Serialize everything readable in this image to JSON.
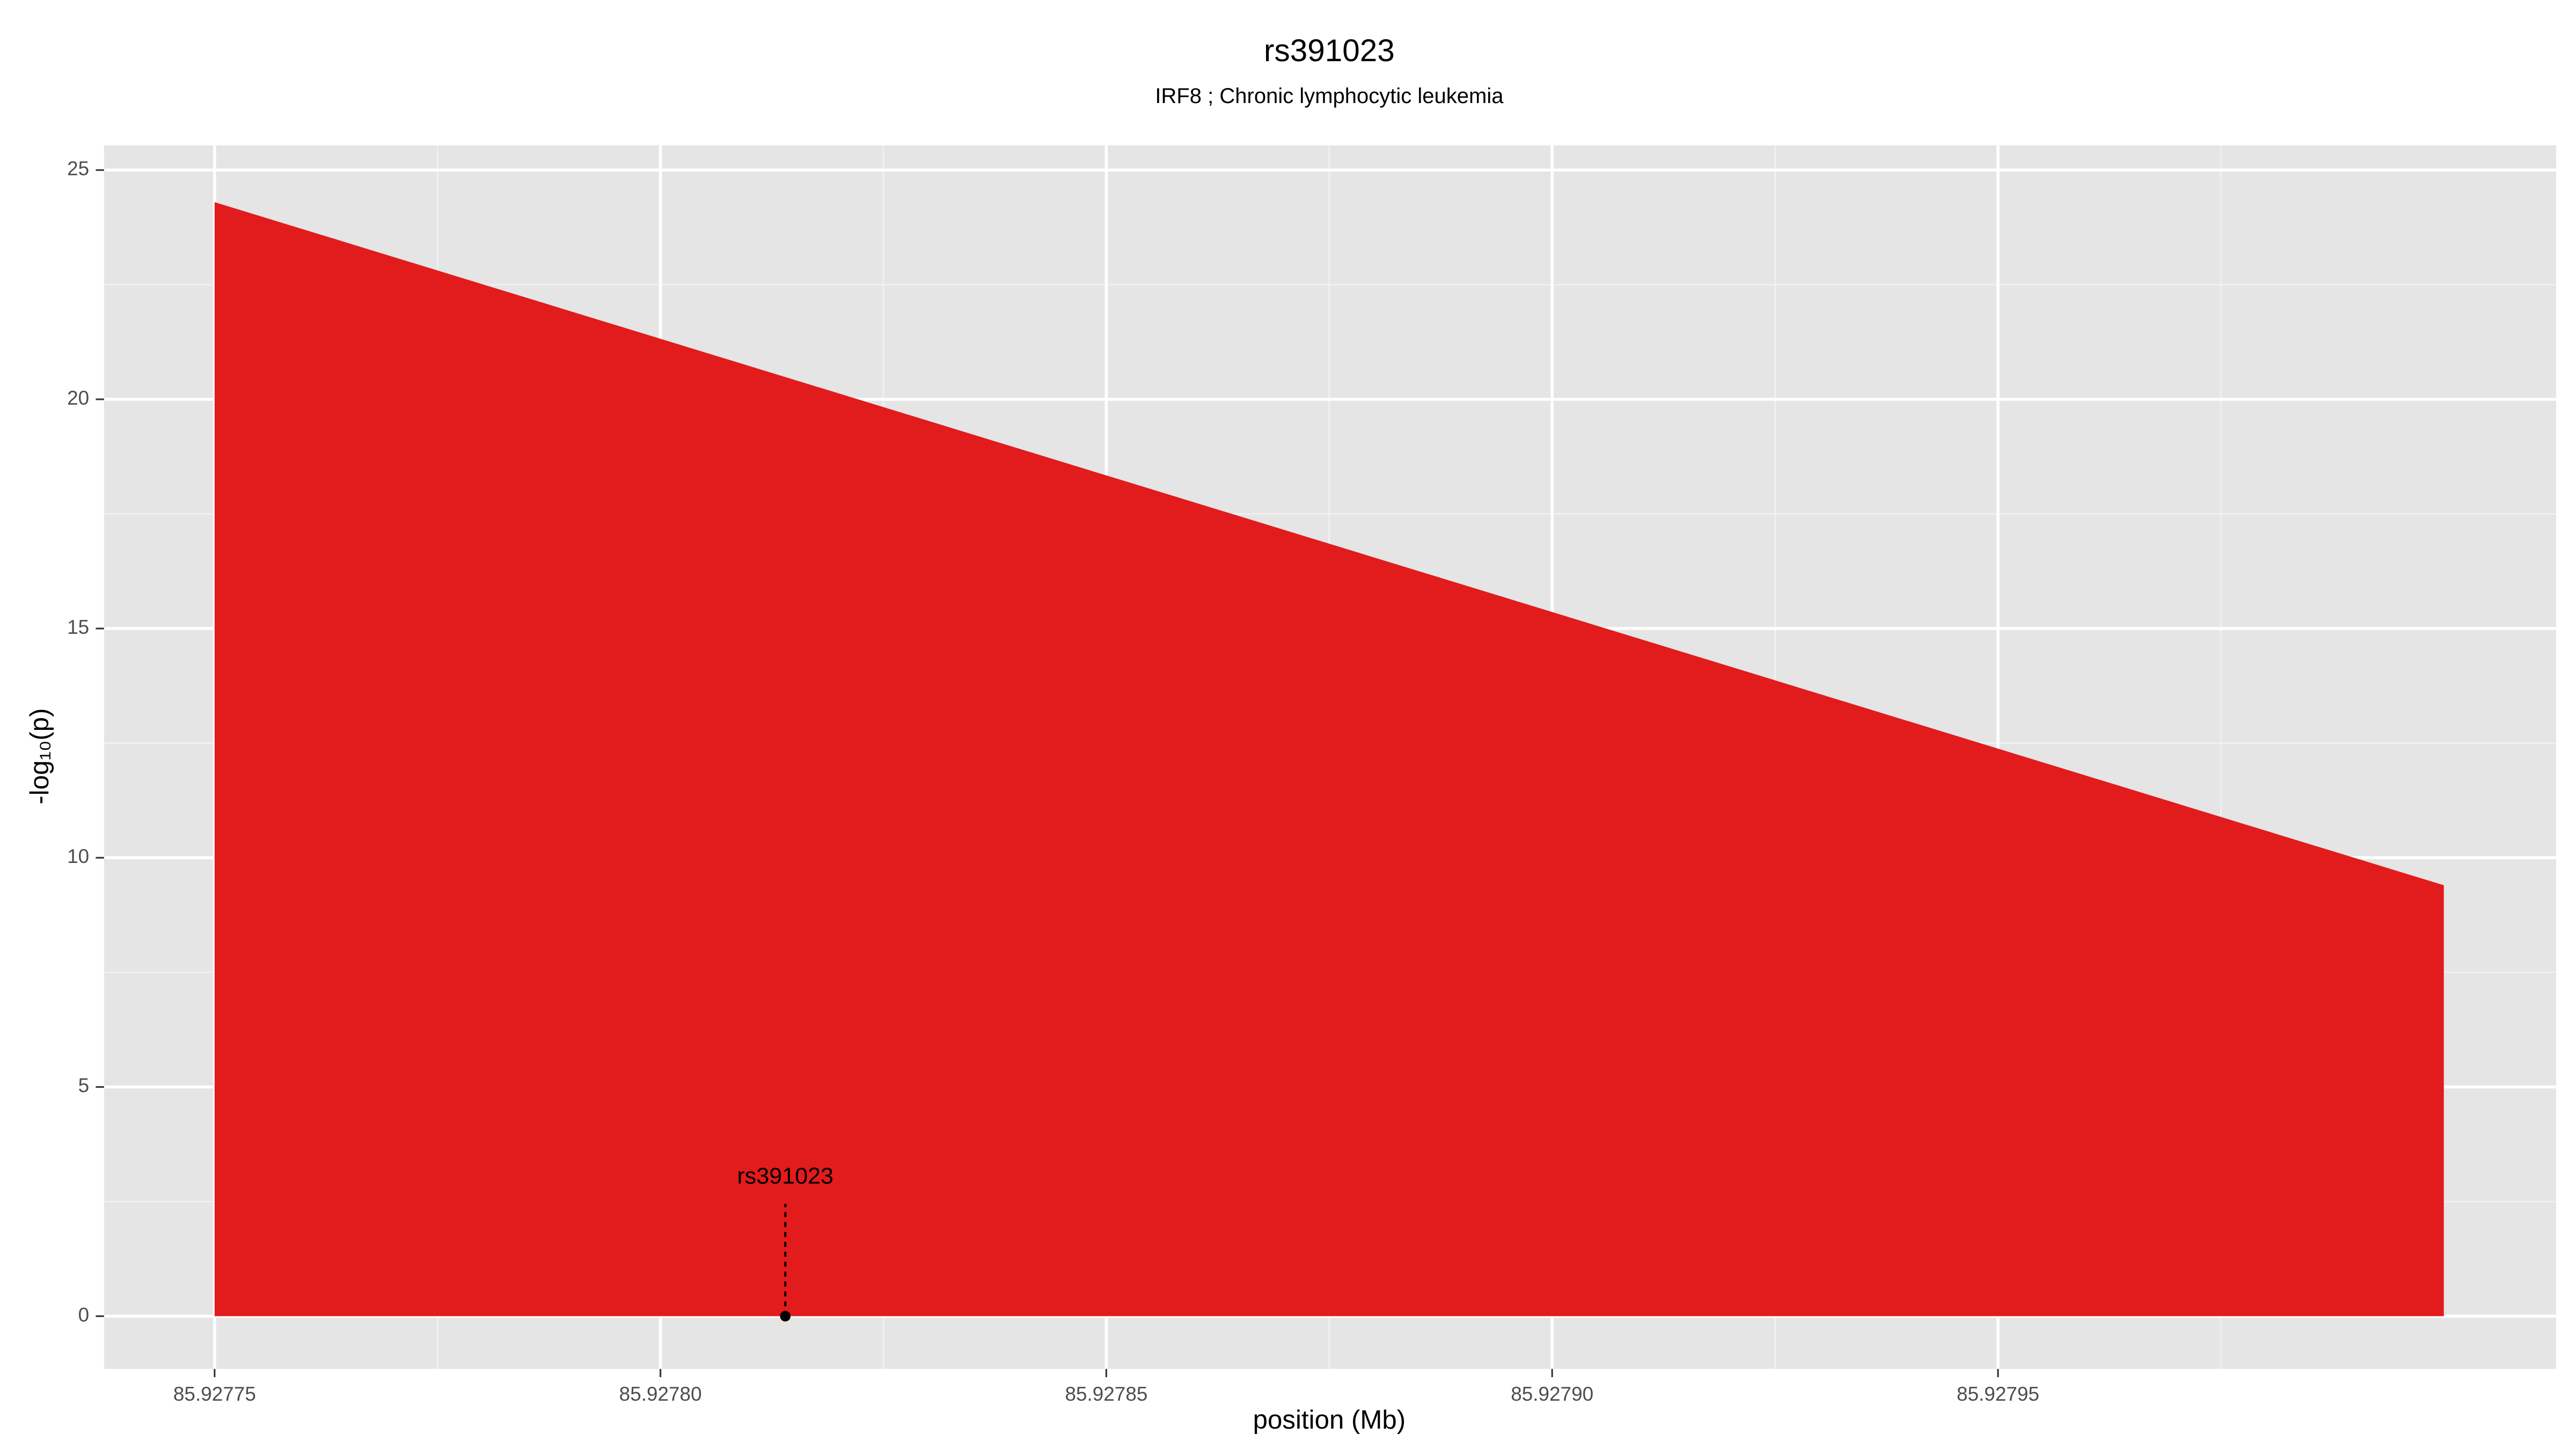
{
  "chart_data": {
    "type": "area",
    "title": "rs391023",
    "subtitle": "IRF8 ; Chronic lymphocytic leukemia",
    "x_label": "position (Mb)",
    "y_label": "-log₁₀(p)",
    "x": [
      85.92775,
      85.928
    ],
    "values": [
      24.3,
      9.4
    ],
    "color": "#e21b1c",
    "annotation": {
      "label": "rs391023",
      "x": 85.927814,
      "y": 0
    },
    "xlim": [
      85.9277376,
      85.9280126
    ],
    "xticks": [
      85.92775,
      {
        "value": 85.9278,
        "label": "85.92780"
      },
      85.92785,
      {
        "value": 85.9279,
        "label": "85.92790"
      },
      85.92795
    ],
    "ylim": [
      -1.15,
      25.54
    ],
    "yticks": [
      0,
      5,
      10,
      15,
      20,
      25
    ],
    "grid": true
  }
}
